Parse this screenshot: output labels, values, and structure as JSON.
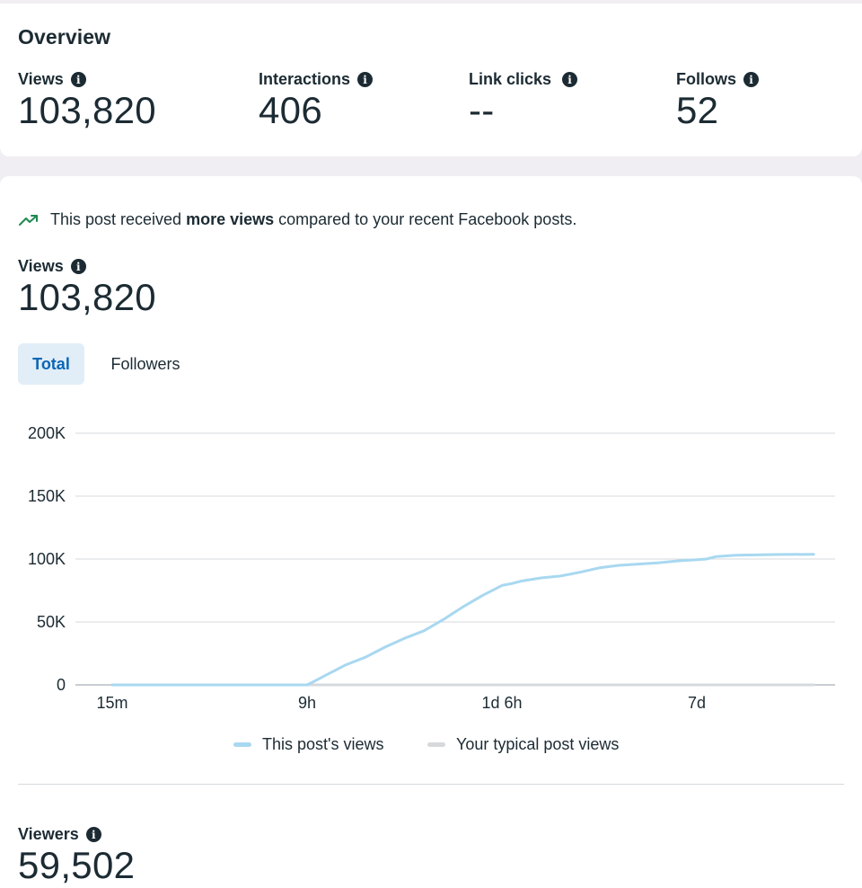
{
  "overview": {
    "title": "Overview",
    "metrics": [
      {
        "label": "Views",
        "value": "103,820"
      },
      {
        "label": "Interactions",
        "value": "406"
      },
      {
        "label": "Link clicks",
        "value": "--"
      },
      {
        "label": "Follows",
        "value": "52"
      }
    ]
  },
  "detail": {
    "insight_prefix": "This post received ",
    "insight_bold": "more views",
    "insight_suffix": " compared to your recent Facebook posts.",
    "views_label": "Views",
    "views_value": "103,820",
    "tabs": [
      {
        "label": "Total",
        "active": true
      },
      {
        "label": "Followers",
        "active": false
      }
    ],
    "viewers_label": "Viewers",
    "viewers_value": "59,502"
  },
  "chart_data": {
    "type": "line",
    "y_ticks": [
      "200K",
      "150K",
      "100K",
      "50K",
      "0"
    ],
    "ylim": [
      0,
      200000
    ],
    "x_ticks": [
      "15m",
      "9h",
      "1d 6h",
      "7d"
    ],
    "series": [
      {
        "name": "This post's views",
        "color": "#a8d8f0",
        "x": [
          0,
          0.5,
          0.9,
          1.0,
          1.02,
          1.1,
          1.2,
          1.3,
          1.4,
          1.5,
          1.6,
          1.7,
          1.8,
          1.9,
          2.0,
          2.05,
          2.1,
          2.2,
          2.3,
          2.4,
          2.5,
          2.6,
          2.7,
          2.8,
          2.9,
          3.0,
          3.05,
          3.1,
          3.2,
          3.4,
          3.6
        ],
        "values": [
          0,
          0,
          0,
          0,
          1500,
          8000,
          16000,
          22000,
          30000,
          37000,
          43000,
          52000,
          62000,
          71000,
          79000,
          80500,
          82500,
          85000,
          86500,
          89500,
          93000,
          95000,
          96000,
          97000,
          98500,
          99500,
          100000,
          102000,
          103000,
          103600,
          103820
        ]
      },
      {
        "name": "Your typical post views",
        "color": "#d6d9dc",
        "x": [
          0,
          3.6
        ],
        "values": [
          0,
          0
        ]
      }
    ]
  },
  "colors": {
    "accent": "#0a66b5",
    "insight_arrow": "#1b8a4e",
    "line": "#a8d8f0",
    "typical": "#d6d9dc"
  }
}
